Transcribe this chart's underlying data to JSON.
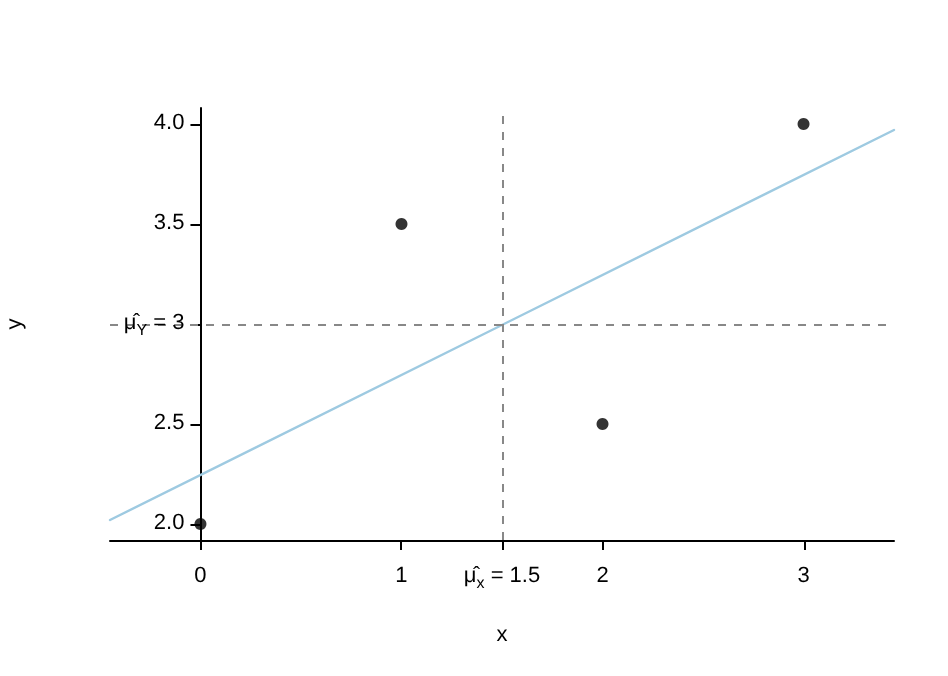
{
  "chart_data": {
    "type": "scatter",
    "xlabel": "x",
    "ylabel": "y",
    "xlim": [
      -0.45,
      3.45
    ],
    "ylim": [
      1.92,
      4.08
    ],
    "xticks": [
      0,
      1,
      {
        "value": 1.5,
        "label": "μ̂$_{x}$ = 1.5"
      },
      2,
      3
    ],
    "yticks": [
      {
        "value": 2,
        "label": "2.0"
      },
      {
        "value": 2.5,
        "label": "2.5"
      },
      {
        "value": 3,
        "label": "μ̂$_{Y}$ = 3"
      },
      {
        "value": 3.5,
        "label": "3.5"
      },
      {
        "value": 4,
        "label": "4.0"
      }
    ],
    "series": [
      {
        "type": "scatter",
        "color": "#000000",
        "x": [
          0,
          1,
          2,
          3
        ],
        "values": [
          2,
          3.5,
          2.5,
          4
        ],
        "marker": "circle"
      },
      {
        "type": "line",
        "color": "#9ecae1",
        "x": [
          -0.45,
          3.45
        ],
        "values": [
          2.02,
          3.97
        ],
        "marker": "none",
        "line_style": "solid"
      }
    ],
    "ref_lines": [
      {
        "axis": "x",
        "value": 1.5,
        "color": "#888888",
        "line_style": "dashed"
      },
      {
        "axis": "y",
        "value": 3,
        "color": "#888888",
        "line_style": "dashed"
      }
    ],
    "grid": false
  }
}
